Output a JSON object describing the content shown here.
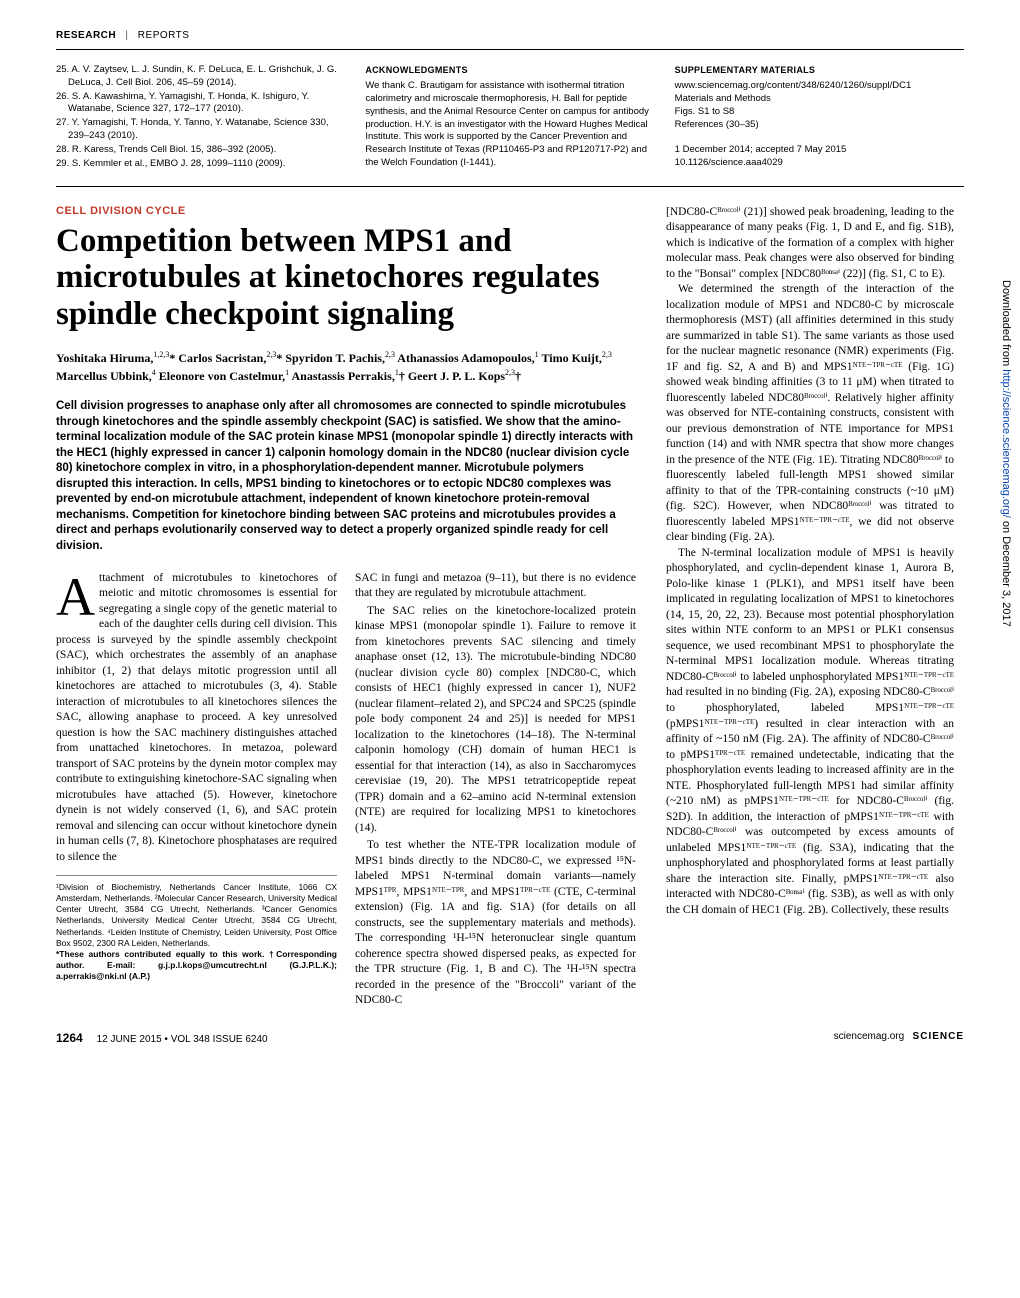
{
  "running_head": {
    "section": "RESEARCH",
    "type": "REPORTS"
  },
  "prev_refs": [
    "25. A. V. Zaytsev, L. J. Sundin, K. F. DeLuca, E. L. Grishchuk, J. G. DeLuca, J. Cell Biol. 206, 45–59 (2014).",
    "26. S. A. Kawashima, Y. Yamagishi, T. Honda, K. Ishiguro, Y. Watanabe, Science 327, 172–177 (2010).",
    "27. Y. Yamagishi, T. Honda, Y. Tanno, Y. Watanabe, Science 330, 239–243 (2010).",
    "28. R. Karess, Trends Cell Biol. 15, 386–392 (2005).",
    "29. S. Kemmler et al., EMBO J. 28, 1099–1110 (2009)."
  ],
  "acknowledgments": {
    "heading": "ACKNOWLEDGMENTS",
    "text": "We thank C. Brautigam for assistance with isothermal titration calorimetry and microscale thermophoresis, H. Ball for peptide synthesis, and the Animal Resource Center on campus for antibody production. H.Y. is an investigator with the Howard Hughes Medical Institute. This work is supported by the Cancer Prevention and Research Institute of Texas (RP110465-P3 and RP120717-P2) and the Welch Foundation (I-1441)."
  },
  "supplementary": {
    "heading": "SUPPLEMENTARY MATERIALS",
    "lines": [
      "www.sciencemag.org/content/348/6240/1260/suppl/DC1",
      "Materials and Methods",
      "Figs. S1 to S8",
      "References (30–35)",
      "",
      "1 December 2014; accepted 7 May 2015",
      "10.1126/science.aaa4029"
    ]
  },
  "category": "CELL DIVISION CYCLE",
  "title": "Competition between MPS1 and microtubules at kinetochores regulates spindle checkpoint signaling",
  "authors_html": "Yoshitaka Hiruma,<sup>1,2,3</sup>* Carlos Sacristan,<sup>2,3</sup>* Spyridon T. Pachis,<sup>2,3</sup> Athanassios Adamopoulos,<sup>1</sup> Timo Kuijt,<sup>2,3</sup> Marcellus Ubbink,<sup>4</sup> Eleonore von Castelmur,<sup>1</sup> Anastassis Perrakis,<sup>1</sup>† Geert J. P. L. Kops<sup>2,3</sup>†",
  "abstract": "Cell division progresses to anaphase only after all chromosomes are connected to spindle microtubules through kinetochores and the spindle assembly checkpoint (SAC) is satisfied. We show that the amino-terminal localization module of the SAC protein kinase MPS1 (monopolar spindle 1) directly interacts with the HEC1 (highly expressed in cancer 1) calponin homology domain in the NDC80 (nuclear division cycle 80) kinetochore complex in vitro, in a phosphorylation-dependent manner. Microtubule polymers disrupted this interaction. In cells, MPS1 binding to kinetochores or to ectopic NDC80 complexes was prevented by end-on microtubule attachment, independent of known kinetochore protein-removal mechanisms. Competition for kinetochore binding between SAC proteins and microtubules provides a direct and perhaps evolutionarily conserved way to detect a properly organized spindle ready for cell division.",
  "body": {
    "p1_drop": "A",
    "p1": "ttachment of microtubules to kinetochores of meiotic and mitotic chromosomes is essential for segregating a single copy of the genetic material to each of the daughter cells during cell division. This process is surveyed by the spindle assembly checkpoint (SAC), which orchestrates the assembly of an anaphase inhibitor (1, 2) that delays mitotic progression until all kinetochores are attached to microtubules (3, 4). Stable interaction of microtubules to all kinetochores silences the SAC, allowing anaphase to proceed. A key unresolved question is how the SAC machinery distinguishes attached from unattached kinetochores. In metazoa, poleward transport of SAC proteins by the dynein motor complex may contribute to extinguishing kinetochore-SAC signaling when microtubules have attached (5). However, kinetochore dynein is not widely conserved (1, 6), and SAC protein removal and silencing can occur without kinetochore dynein in human cells (7, 8). Kinetochore phosphatases are required to silence the",
    "p2": "SAC in fungi and metazoa (9–11), but there is no evidence that they are regulated by microtubule attachment.",
    "p3": "The SAC relies on the kinetochore-localized protein kinase MPS1 (monopolar spindle 1). Failure to remove it from kinetochores prevents SAC silencing and timely anaphase onset (12, 13). The microtubule-binding NDC80 (nuclear division cycle 80) complex [NDC80-C, which consists of HEC1 (highly expressed in cancer 1), NUF2 (nuclear filament–related 2), and SPC24 and SPC25 (spindle pole body component 24 and 25)] is needed for MPS1 localization to the kinetochores (14–18). The N-terminal calponin homology (CH) domain of human HEC1 is essential for that interaction (14), as also in Saccharomyces cerevisiae (19, 20). The MPS1 tetratricopeptide repeat (TPR) domain and a 62–amino acid N-terminal extension (NTE) are required for localizing MPS1 to kinetochores (14).",
    "p4": "To test whether the NTE-TPR localization module of MPS1 binds directly to the NDC80-C, we expressed ¹⁵N-labeled MPS1 N-terminal domain variants—namely MPS1ᵀᴾᴿ, MPS1ᴺᵀᴱ⁻ᵀᴾᴿ, and MPS1ᵀᴾᴿ⁻ᶜᵀᴱ (CTE, C-terminal extension) (Fig. 1A and fig. S1A) (for details on all constructs, see the supplementary materials and methods). The corresponding ¹H-¹⁵N heteronuclear single quantum coherence spectra showed dispersed peaks, as expected for the TPR structure (Fig. 1, B and C). The ¹H-¹⁵N spectra recorded in the presence of the \"Broccoli\" variant of the NDC80-C"
  },
  "right": {
    "p1": "[NDC80-Cᴮʳᵒᶜᶜᵒˡⁱ (21)] showed peak broadening, leading to the disappearance of many peaks (Fig. 1, D and E, and fig. S1B), which is indicative of the formation of a complex with higher molecular mass. Peak changes were also observed for binding to the \"Bonsai\" complex [NDC80ᴮᵒⁿˢᵃⁱ (22)] (fig. S1, C to E).",
    "p2": "We determined the strength of the interaction of the localization module of MPS1 and NDC80-C by microscale thermophoresis (MST) (all affinities determined in this study are summarized in table S1). The same variants as those used for the nuclear magnetic resonance (NMR) experiments (Fig. 1F and fig. S2, A and B) and MPS1ᴺᵀᴱ⁻ᵀᴾᴿ⁻ᶜᵀᴱ (Fig. 1G) showed weak binding affinities (3 to 11 μM) when titrated to fluorescently labeled NDC80ᴮʳᵒᶜᶜᵒˡⁱ. Relatively higher affinity was observed for NTE-containing constructs, consistent with our previous demonstration of NTE importance for MPS1 function (14) and with NMR spectra that show more changes in the presence of the NTE (Fig. 1E). Titrating NDC80ᴮʳᵒᶜᶜᵒˡⁱ to fluorescently labeled full-length MPS1 showed similar affinity to that of the TPR-containing constructs (~10 μM) (fig. S2C). However, when NDC80ᴮʳᵒᶜᶜᵒˡⁱ was titrated to fluorescently labeled MPS1ᴺᵀᴱ⁻ᵀᴾᴿ⁻ᶜᵀᴱ, we did not observe clear binding (Fig. 2A).",
    "p3": "The N-terminal localization module of MPS1 is heavily phosphorylated, and cyclin-dependent kinase 1, Aurora B, Polo-like kinase 1 (PLK1), and MPS1 itself have been implicated in regulating localization of MPS1 to kinetochores (14, 15, 20, 22, 23). Because most potential phosphorylation sites within NTE conform to an MPS1 or PLK1 consensus sequence, we used recombinant MPS1 to phosphorylate the N-terminal MPS1 localization module. Whereas titrating NDC80-Cᴮʳᵒᶜᶜᵒˡⁱ to labeled unphosphorylated MPS1ᴺᵀᴱ⁻ᵀᴾᴿ⁻ᶜᵀᴱ had resulted in no binding (Fig. 2A), exposing NDC80-Cᴮʳᵒᶜᶜᵒˡⁱ to phosphorylated, labeled MPS1ᴺᵀᴱ⁻ᵀᴾᴿ⁻ᶜᵀᴱ (pMPS1ᴺᵀᴱ⁻ᵀᴾᴿ⁻ᶜᵀᴱ) resulted in clear interaction with an affinity of ~150 nM (Fig. 2A). The affinity of NDC80-Cᴮʳᵒᶜᶜᵒˡⁱ to pMPS1ᵀᴾᴿ⁻ᶜᵀᴱ remained undetectable, indicating that the phosphorylation events leading to increased affinity are in the NTE. Phosphorylated full-length MPS1 had similar affinity (~210 nM) as pMPS1ᴺᵀᴱ⁻ᵀᴾᴿ⁻ᶜᵀᴱ for NDC80-Cᴮʳᵒᶜᶜᵒˡⁱ (fig. S2D). In addition, the interaction of pMPS1ᴺᵀᴱ⁻ᵀᴾᴿ⁻ᶜᵀᴱ with NDC80-Cᴮʳᵒᶜᶜᵒˡⁱ was outcompeted by excess amounts of unlabeled MPS1ᴺᵀᴱ⁻ᵀᴾᴿ⁻ᶜᵀᴱ (fig. S3A), indicating that the unphosphorylated and phosphorylated forms at least partially share the interaction site. Finally, pMPS1ᴺᵀᴱ⁻ᵀᴾᴿ⁻ᶜᵀᴱ also interacted with NDC80-Cᴮᵒⁿˢᵃⁱ (fig. S3B), as well as with only the CH domain of HEC1 (Fig. 2B). Collectively, these results"
  },
  "affiliations": "¹Division of Biochemistry, Netherlands Cancer Institute, 1066 CX Amsterdam, Netherlands. ²Molecular Cancer Research, University Medical Center Utrecht, 3584 CG Utrecht, Netherlands. ³Cancer Genomics Netherlands, University Medical Center Utrecht, 3584 CG Utrecht, Netherlands. ⁴Leiden Institute of Chemistry, Leiden University, Post Office Box 9502, 2300 RA Leiden, Netherlands.",
  "author_notes": "*These authors contributed equally to this work. †Corresponding author. E-mail: g.j.p.l.kops@umcutrecht.nl (G.J.P.L.K.); a.perrakis@nki.nl (A.P.)",
  "footer": {
    "page": "1264",
    "issue": "12 JUNE 2015 • VOL 348 ISSUE 6240",
    "url": "sciencemag.org",
    "journal": "SCIENCE"
  },
  "watermark": {
    "pre": "Downloaded from ",
    "link": "http://science.sciencemag.org/",
    "post": " on December 3, 2017"
  }
}
